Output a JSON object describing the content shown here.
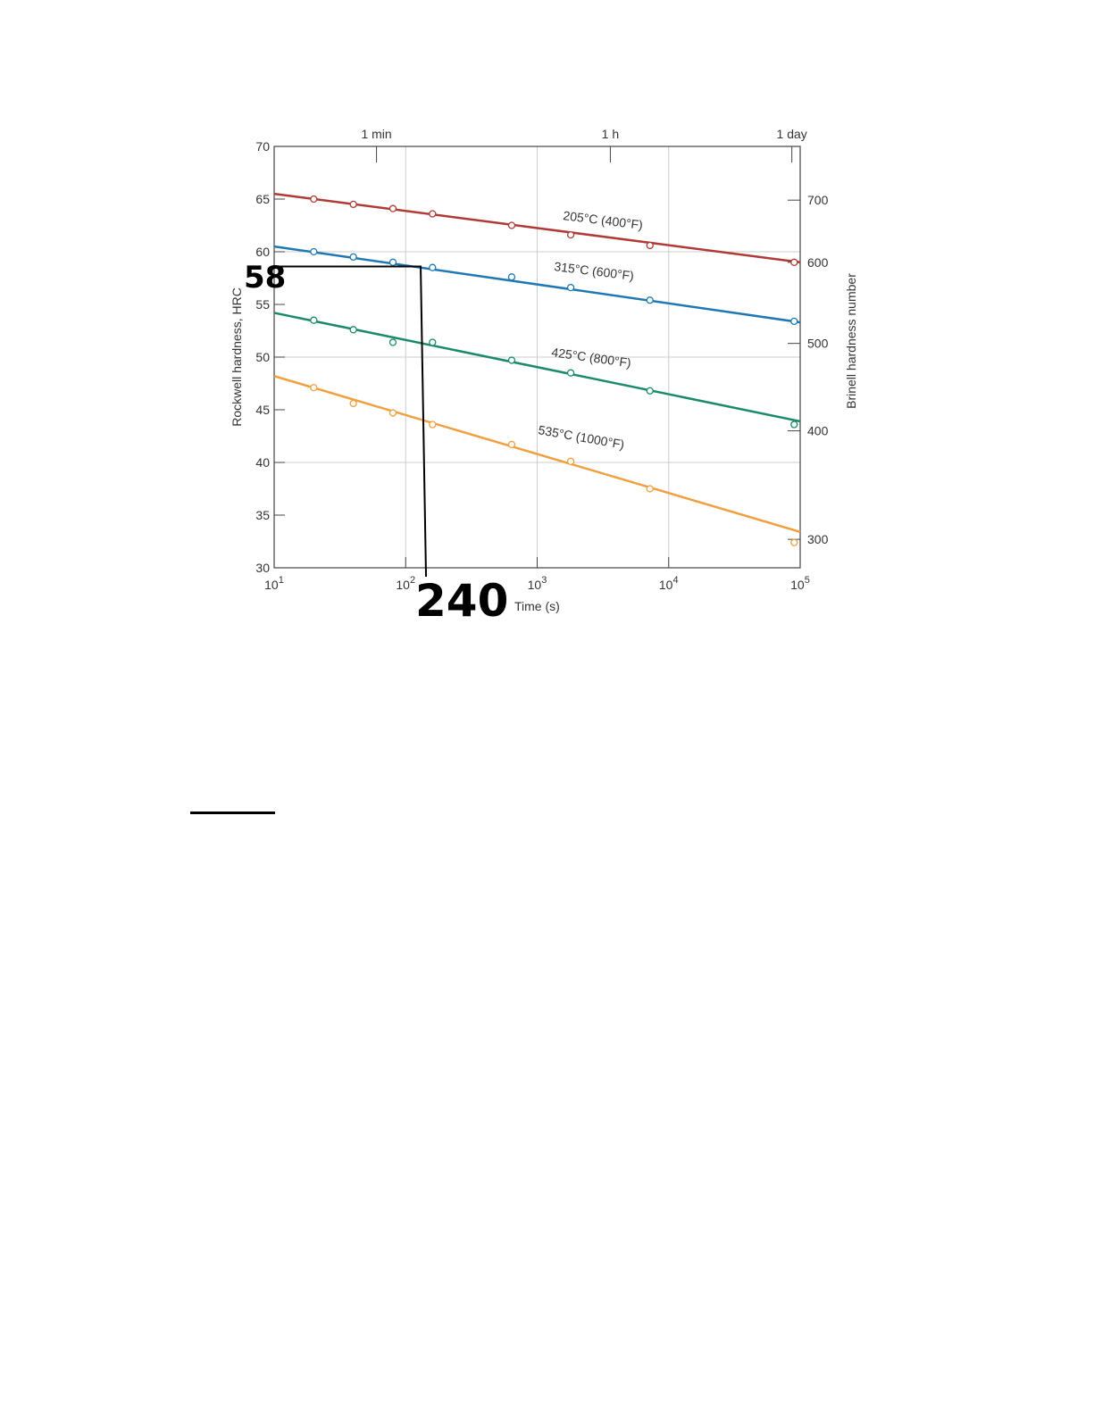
{
  "chart_data": {
    "type": "line",
    "xscale": "log",
    "xlabel": "Time (s)",
    "ylabel": "Rockwell hardness, HRC",
    "y2label": "Brinell hardness number",
    "xlim": [
      10,
      100000
    ],
    "ylim": [
      30,
      70
    ],
    "grid": true,
    "x_ticks": [
      {
        "value": 10,
        "base": "10",
        "exp": "1"
      },
      {
        "value": 100,
        "base": "10",
        "exp": "2"
      },
      {
        "value": 1000,
        "base": "10",
        "exp": "3"
      },
      {
        "value": 10000,
        "base": "10",
        "exp": "4"
      },
      {
        "value": 100000,
        "base": "10",
        "exp": "5"
      }
    ],
    "y_ticks": [
      "30",
      "35",
      "40",
      "45",
      "50",
      "55",
      "60",
      "65",
      "70"
    ],
    "top_ticks": [
      {
        "label": "1 min",
        "value": 60
      },
      {
        "label": "1 h",
        "value": 3600
      },
      {
        "label": "1 day",
        "value": 86400
      }
    ],
    "right_ticks": [
      {
        "label": "700",
        "hrc": 64.9
      },
      {
        "label": "600",
        "hrc": 59.0
      },
      {
        "label": "500",
        "hrc": 51.3
      },
      {
        "label": "400",
        "hrc": 43.0
      },
      {
        "label": "300",
        "hrc": 32.7
      }
    ],
    "x": [
      20,
      40,
      80,
      160,
      640,
      1800,
      7200,
      90000
    ],
    "series": [
      {
        "name": "205°C (400°F)",
        "color": "#b03a36",
        "values": [
          65.0,
          64.5,
          64.1,
          63.6,
          62.5,
          61.6,
          60.6,
          59.0
        ],
        "fit": [
          65.5,
          59.0
        ]
      },
      {
        "name": "315°C (600°F)",
        "color": "#1f78b4",
        "values": [
          60.0,
          59.5,
          59.0,
          58.5,
          57.6,
          56.6,
          55.4,
          53.4
        ],
        "fit": [
          60.5,
          53.3
        ]
      },
      {
        "name": "425°C (800°F)",
        "color": "#1b8a6b",
        "values": [
          53.5,
          52.6,
          51.4,
          51.4,
          49.7,
          48.5,
          46.8,
          43.6
        ],
        "fit": [
          54.2,
          43.9
        ]
      },
      {
        "name": "535°C (1000°F)",
        "color": "#f0a040",
        "values": [
          47.1,
          45.6,
          44.7,
          43.6,
          41.7,
          40.1,
          37.5,
          32.4
        ],
        "fit": [
          48.2,
          33.4
        ]
      }
    ],
    "annotations": {
      "hrc_label": "58",
      "time_label": "240",
      "hrc_value": 58.6,
      "time_value": 130
    }
  }
}
